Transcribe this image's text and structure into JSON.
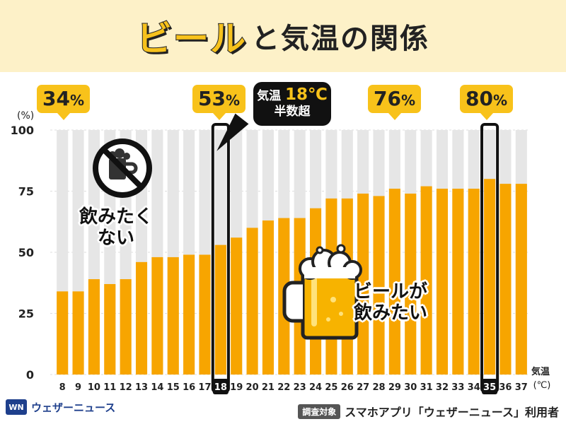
{
  "title": {
    "main": "ビール",
    "rest": "と気温の関係"
  },
  "chart_data": {
    "type": "bar",
    "categories": [
      "8",
      "9",
      "10",
      "11",
      "12",
      "13",
      "14",
      "15",
      "16",
      "17",
      "18",
      "19",
      "20",
      "21",
      "22",
      "23",
      "24",
      "25",
      "26",
      "27",
      "28",
      "29",
      "30",
      "31",
      "32",
      "33",
      "34",
      "35",
      "36",
      "37"
    ],
    "values": [
      34,
      34,
      39,
      37,
      39,
      46,
      48,
      48,
      49,
      49,
      53,
      56,
      60,
      63,
      64,
      64,
      68,
      72,
      72,
      74,
      73,
      76,
      74,
      77,
      76,
      76,
      76,
      80,
      78,
      78
    ],
    "ylim": [
      0,
      100
    ],
    "yticks": [
      "0",
      "25",
      "50",
      "75",
      "100"
    ],
    "ylabel": "(%)",
    "xlabel": "気温",
    "xunit": "(℃)",
    "highlighted_categories": [
      "18",
      "35"
    ],
    "colors": {
      "bar": "#f7a500",
      "remainder": "#e6e6e6",
      "highlight_outline": "#111111"
    }
  },
  "callouts": [
    {
      "category": "8",
      "value": "34",
      "unit": "%"
    },
    {
      "category": "18",
      "value": "53",
      "unit": "%"
    },
    {
      "category": "29",
      "value": "76",
      "unit": "%"
    },
    {
      "category": "35",
      "value": "80",
      "unit": "%"
    }
  ],
  "temp_note": {
    "line1_prefix": "気温",
    "line1_value": "18℃",
    "line2": "半数超"
  },
  "annotations": {
    "not_want_line1": "飲みたく",
    "not_want_line2": "ない",
    "want_line1": "ビールが",
    "want_line2": "飲みたい"
  },
  "icons": {
    "no_beer": "no-beer-icon",
    "beer": "beer-mug-icon"
  },
  "footer": {
    "logo_mark": "WN",
    "logo_text": "ウェザーニュース",
    "survey_badge": "調査対象",
    "survey_text": "スマホアプリ「ウェザーニュース」利用者"
  }
}
